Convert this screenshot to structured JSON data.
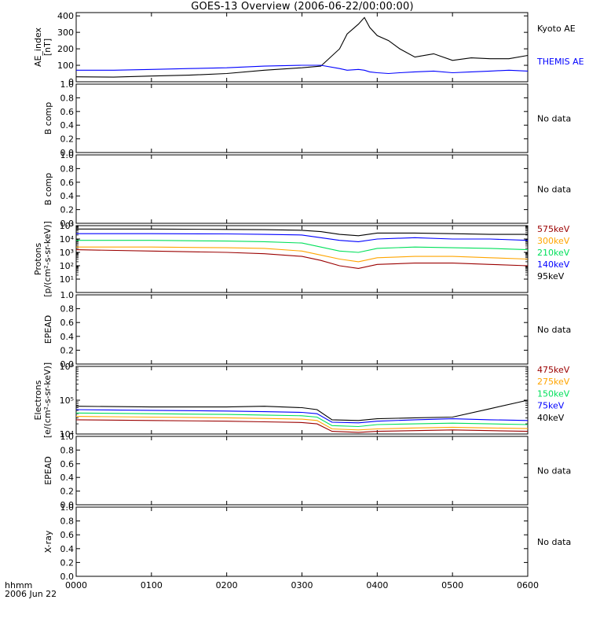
{
  "title": "GOES-13 Overview (2006-06-22/00:00:00)",
  "time_axis": {
    "label_line1": "hhmm",
    "label_line2": "2006 Jun 22",
    "ticks": [
      "0000",
      "0100",
      "0200",
      "0300",
      "0400",
      "0500",
      "0600"
    ]
  },
  "no_data_text": "No data",
  "colors": {
    "black": "#000000",
    "blue": "#0000ff",
    "green": "#00e05a",
    "orange": "#ffa500",
    "darkred": "#9b0000"
  },
  "chart_data": [
    {
      "type": "line",
      "ylabel_lines": [
        "AE_index",
        "[nT]"
      ],
      "ylim": [
        0,
        420
      ],
      "yticks": [
        "0",
        "100",
        "200",
        "300",
        "400"
      ],
      "ytick_values": [
        0,
        100,
        200,
        300,
        400
      ],
      "x_hours": [
        0,
        0.5,
        1.0,
        1.5,
        2.0,
        2.5,
        3.0,
        3.25,
        3.5,
        3.6,
        3.75,
        3.83,
        3.9,
        4.0,
        4.15,
        4.3,
        4.5,
        4.75,
        5.0,
        5.25,
        5.5,
        5.75,
        6.0
      ],
      "series": [
        {
          "name": "Kyoto AE",
          "color": "black",
          "values": [
            30,
            28,
            35,
            40,
            50,
            70,
            85,
            95,
            200,
            290,
            350,
            390,
            330,
            280,
            250,
            200,
            150,
            170,
            130,
            145,
            140,
            140,
            160
          ]
        },
        {
          "name": "THEMIS AE",
          "color": "blue",
          "values": [
            70,
            70,
            75,
            80,
            85,
            95,
            100,
            100,
            80,
            70,
            75,
            70,
            60,
            55,
            50,
            55,
            60,
            65,
            55,
            60,
            65,
            70,
            65
          ]
        }
      ]
    },
    {
      "type": "none",
      "ylabel_lines": [
        "B comp"
      ],
      "ylim": [
        0,
        1
      ],
      "yticks": [
        "0.0",
        "0.2",
        "0.4",
        "0.6",
        "0.8",
        "1.0"
      ],
      "no_data": true
    },
    {
      "type": "none",
      "ylabel_lines": [
        "B comp"
      ],
      "ylim": [
        0,
        1
      ],
      "yticks": [
        "0.0",
        "0.2",
        "0.4",
        "0.6",
        "0.8",
        "1.0"
      ],
      "no_data": true
    },
    {
      "type": "line",
      "ylabel_lines": [
        "Protons",
        "[p/(cm²-s-sr-keV)]"
      ],
      "log_y": true,
      "ylim": [
        1,
        100000
      ],
      "yticks": [
        "10¹",
        "10²",
        "10³",
        "10⁴",
        "10⁵"
      ],
      "ytick_values": [
        1,
        2,
        3,
        4,
        5
      ],
      "x_hours": [
        0,
        1,
        2,
        2.5,
        3.0,
        3.25,
        3.5,
        3.75,
        4.0,
        4.5,
        5.0,
        5.5,
        6.0
      ],
      "series": [
        {
          "name": "575keV",
          "color": "darkred",
          "log_values": [
            3.2,
            3.1,
            3.0,
            2.9,
            2.7,
            2.4,
            2.0,
            1.8,
            2.1,
            2.2,
            2.2,
            2.1,
            2.0
          ]
        },
        {
          "name": "300keV",
          "color": "orange",
          "log_values": [
            3.4,
            3.4,
            3.35,
            3.3,
            3.1,
            2.8,
            2.5,
            2.3,
            2.6,
            2.7,
            2.7,
            2.6,
            2.5
          ]
        },
        {
          "name": "210keV",
          "color": "green",
          "log_values": [
            3.9,
            3.9,
            3.85,
            3.8,
            3.7,
            3.4,
            3.1,
            3.0,
            3.3,
            3.4,
            3.35,
            3.3,
            3.2
          ]
        },
        {
          "name": "140keV",
          "color": "blue",
          "log_values": [
            4.4,
            4.4,
            4.38,
            4.35,
            4.3,
            4.1,
            3.9,
            3.8,
            4.0,
            4.1,
            4.0,
            4.0,
            3.9
          ]
        },
        {
          "name": "95keV",
          "color": "black",
          "log_values": [
            4.75,
            4.75,
            4.72,
            4.7,
            4.65,
            4.55,
            4.35,
            4.25,
            4.45,
            4.45,
            4.4,
            4.35,
            4.35
          ]
        }
      ]
    },
    {
      "type": "none",
      "ylabel_lines": [
        "EPEAD"
      ],
      "ylim": [
        0,
        1
      ],
      "yticks": [
        "0.0",
        "0.2",
        "0.4",
        "0.6",
        "0.8",
        "1.0"
      ],
      "no_data": true
    },
    {
      "type": "line",
      "ylabel_lines": [
        "Electrons",
        "[e/(cm²-s-sr-keV)]"
      ],
      "log_y": true,
      "ylim": [
        10000,
        1000000
      ],
      "yticks": [
        "10⁴",
        "10⁵",
        "10⁶"
      ],
      "ytick_values": [
        4,
        5,
        6
      ],
      "x_hours": [
        0,
        1,
        2,
        2.5,
        3.0,
        3.2,
        3.4,
        3.75,
        4.0,
        4.5,
        5.0,
        5.5,
        6.0
      ],
      "series": [
        {
          "name": "475keV",
          "color": "darkred",
          "log_values": [
            4.42,
            4.4,
            4.38,
            4.36,
            4.34,
            4.3,
            4.08,
            4.05,
            4.08,
            4.1,
            4.12,
            4.1,
            4.08
          ]
        },
        {
          "name": "275keV",
          "color": "orange",
          "log_values": [
            4.52,
            4.5,
            4.48,
            4.46,
            4.44,
            4.4,
            4.15,
            4.12,
            4.15,
            4.18,
            4.2,
            4.18,
            4.16
          ]
        },
        {
          "name": "150keV",
          "color": "green",
          "log_values": [
            4.62,
            4.6,
            4.58,
            4.56,
            4.54,
            4.5,
            4.25,
            4.22,
            4.28,
            4.3,
            4.32,
            4.3,
            4.28
          ]
        },
        {
          "name": "75keV",
          "color": "blue",
          "log_values": [
            4.72,
            4.7,
            4.68,
            4.66,
            4.64,
            4.6,
            4.35,
            4.33,
            4.38,
            4.42,
            4.45,
            4.42,
            4.4
          ]
        },
        {
          "name": "40keV",
          "color": "black",
          "log_values": [
            4.82,
            4.8,
            4.8,
            4.82,
            4.78,
            4.72,
            4.42,
            4.4,
            4.45,
            4.48,
            4.5,
            4.75,
            5.0
          ]
        }
      ]
    },
    {
      "type": "none",
      "ylabel_lines": [
        "EPEAD"
      ],
      "ylim": [
        0,
        1
      ],
      "yticks": [
        "0.0",
        "0.2",
        "0.4",
        "0.6",
        "0.8",
        "1.0"
      ],
      "no_data": true
    },
    {
      "type": "none",
      "ylabel_lines": [
        "X-ray"
      ],
      "ylim": [
        0,
        1
      ],
      "yticks": [
        "0.0",
        "0.2",
        "0.4",
        "0.6",
        "0.8",
        "1.0"
      ],
      "no_data": true
    }
  ]
}
